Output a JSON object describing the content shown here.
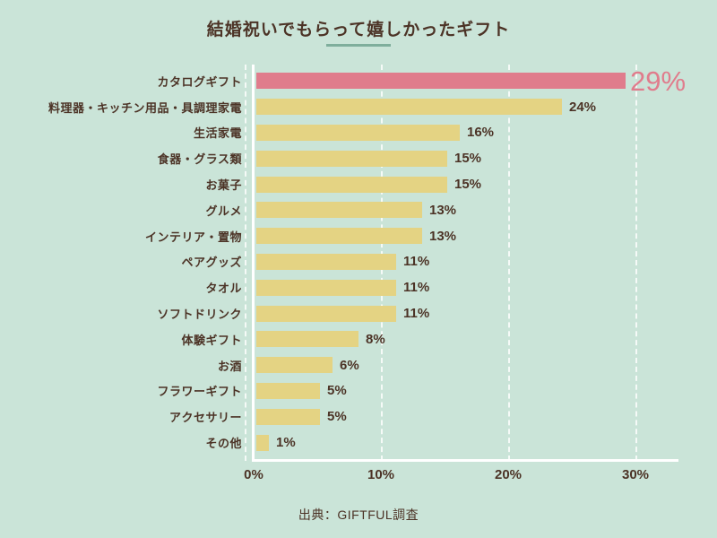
{
  "page": {
    "background": "#cae4d8"
  },
  "title": {
    "text": "結婚祝いでもらって嬉しかったギフト",
    "underline_color": "#7fae9c"
  },
  "source": {
    "text": "出典：GIFTFUL調査"
  },
  "colors": {
    "background": "#cae4d8",
    "bar": "#e4d383",
    "highlight_bar": "#e07c8c",
    "text": "#4c3326",
    "grid_and_axis": "#ffffff",
    "title_underline": "#7fae9c"
  },
  "chart_data": {
    "type": "bar",
    "orientation": "horizontal",
    "title": "結婚祝いでもらって嬉しかったギフト",
    "categories": [
      "カタログギフト",
      "料理器・キッチン用品・具調理家電",
      "生活家電",
      "食器・グラス類",
      "お菓子",
      "グルメ",
      "インテリア・置物",
      "ペアグッズ",
      "タオル",
      "ソフトドリンク",
      "体験ギフト",
      "お酒",
      "フラワーギフト",
      "アクセサリー",
      "その他"
    ],
    "values": [
      29,
      24,
      16,
      15,
      15,
      13,
      13,
      11,
      11,
      11,
      8,
      6,
      5,
      5,
      1
    ],
    "value_labels": [
      "29%",
      "24%",
      "16%",
      "15%",
      "15%",
      "13%",
      "13%",
      "11%",
      "11%",
      "11%",
      "8%",
      "6%",
      "5%",
      "5%",
      "1%"
    ],
    "highlight_index": 0,
    "xlabel": "",
    "ylabel": "",
    "xlim": [
      0,
      33
    ],
    "x_ticks": [
      {
        "value": 0,
        "label": "0%"
      },
      {
        "value": 10,
        "label": "10%"
      },
      {
        "value": 20,
        "label": "20%"
      },
      {
        "value": 30,
        "label": "30%"
      }
    ],
    "grid": "vertical-dashed-white",
    "legend": "none",
    "source": "出典：GIFTFUL調査"
  }
}
